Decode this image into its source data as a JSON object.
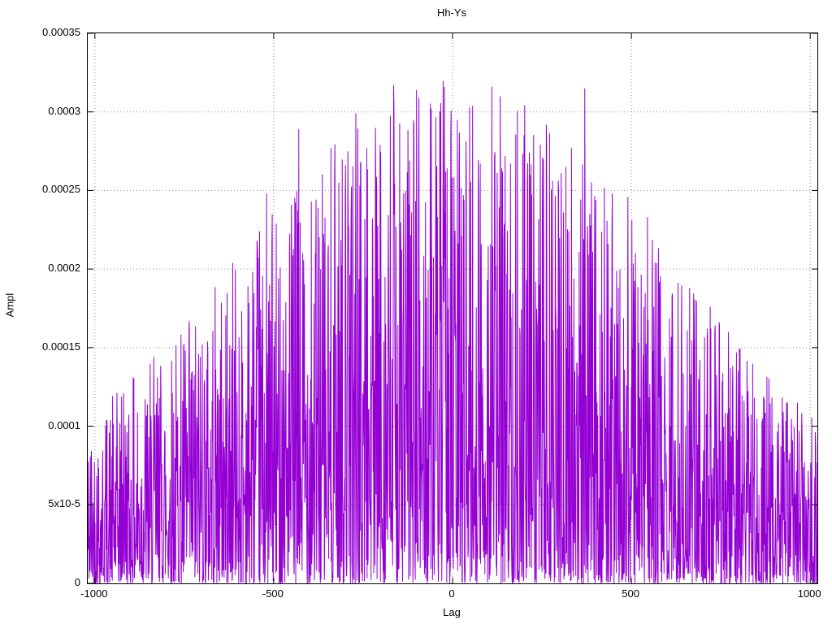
{
  "chart_data": {
    "type": "line",
    "title": "Hh-Ys",
    "xlabel": "Lag",
    "ylabel": "Ampl",
    "xlim": [
      -1020,
      1020
    ],
    "ylim": [
      0,
      0.00035
    ],
    "grid": true,
    "legend": "none",
    "xticks": [
      {
        "value": -1000,
        "label": "-1000"
      },
      {
        "value": -500,
        "label": "-500"
      },
      {
        "value": 0,
        "label": "0"
      },
      {
        "value": 500,
        "label": "500"
      },
      {
        "value": 1000,
        "label": "1000"
      }
    ],
    "yticks": [
      {
        "value": 0,
        "label": "0"
      },
      {
        "value": 5e-05,
        "label": "5x10-5"
      },
      {
        "value": 0.0001,
        "label": "0.0001"
      },
      {
        "value": 0.00015,
        "label": "0.00015"
      },
      {
        "value": 0.0002,
        "label": "0.0002"
      },
      {
        "value": 0.00025,
        "label": "0.00025"
      },
      {
        "value": 0.0003,
        "label": "0.0003"
      },
      {
        "value": 0.00035,
        "label": "0.00035"
      }
    ],
    "series": [
      {
        "name": "Hh-Ys",
        "color": "#9400d3",
        "style": "noisy-line"
      }
    ],
    "generation": {
      "seed": 42,
      "points": 2200,
      "noise_exponent": 2.0,
      "envelope": {
        "base": 4e-05,
        "peak": 0.00028,
        "gauss_width": 850
      }
    },
    "observed_peaks": [
      {
        "x": -920,
        "y": 0.000121
      },
      {
        "x": -820,
        "y": 0.000118
      },
      {
        "x": -700,
        "y": 0.000152
      },
      {
        "x": -610,
        "y": 0.000148
      },
      {
        "x": -520,
        "y": 0.000248
      },
      {
        "x": -505,
        "y": 0.000215
      },
      {
        "x": -430,
        "y": 0.000289
      },
      {
        "x": -395,
        "y": 0.000243
      },
      {
        "x": -330,
        "y": 0.000259
      },
      {
        "x": -300,
        "y": 0.000247
      },
      {
        "x": -270,
        "y": 0.000299
      },
      {
        "x": -240,
        "y": 0.000277
      },
      {
        "x": -165,
        "y": 0.000317
      },
      {
        "x": -120,
        "y": 0.000269
      },
      {
        "x": -60,
        "y": 0.000302
      },
      {
        "x": -15,
        "y": 0.000264
      },
      {
        "x": 30,
        "y": 0.000247
      },
      {
        "x": 110,
        "y": 0.000316
      },
      {
        "x": 140,
        "y": 0.000262
      },
      {
        "x": 215,
        "y": 0.000274
      },
      {
        "x": 255,
        "y": 0.000214
      },
      {
        "x": 310,
        "y": 0.000236
      },
      {
        "x": 370,
        "y": 0.000315
      },
      {
        "x": 400,
        "y": 0.000244
      },
      {
        "x": 490,
        "y": 0.000246
      },
      {
        "x": 545,
        "y": 0.000233
      },
      {
        "x": 640,
        "y": 0.000154
      },
      {
        "x": 720,
        "y": 0.000176
      },
      {
        "x": 870,
        "y": 0.000119
      },
      {
        "x": 950,
        "y": 9.1e-05
      }
    ],
    "colors": {
      "line": "#9400d3",
      "grid": "#8c8c8c",
      "border": "#000000"
    }
  }
}
